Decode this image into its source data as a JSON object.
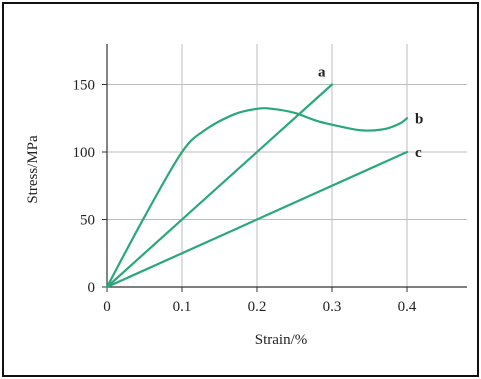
{
  "chart_data": {
    "type": "line",
    "title": "",
    "xlabel": "Strain/%",
    "ylabel": "Stress/MPa",
    "xlim": [
      0,
      0.48
    ],
    "ylim": [
      0,
      180
    ],
    "x_ticks": [
      0,
      0.1,
      0.2,
      0.3,
      0.4
    ],
    "x_tick_labels": [
      "0",
      "0.1",
      "0.2",
      "0.3",
      "0.4"
    ],
    "y_ticks": [
      0,
      50,
      100,
      150
    ],
    "y_tick_labels": [
      "0",
      "50",
      "100",
      "150"
    ],
    "grid": true,
    "legend": "none",
    "line_color": "#2aa87a",
    "grid_color": "#bdbdbd",
    "series": [
      {
        "name": "a",
        "x": [
          0,
          0.3
        ],
        "y": [
          0,
          150
        ]
      },
      {
        "name": "b",
        "x": [
          0,
          0.05,
          0.1,
          0.13,
          0.17,
          0.2,
          0.22,
          0.25,
          0.28,
          0.31,
          0.34,
          0.37,
          0.39,
          0.4
        ],
        "y": [
          0,
          52,
          100,
          116,
          128,
          132,
          132,
          129,
          123,
          119,
          116,
          117,
          121,
          125
        ]
      },
      {
        "name": "c",
        "x": [
          0,
          0.4
        ],
        "y": [
          0,
          100
        ]
      }
    ]
  }
}
